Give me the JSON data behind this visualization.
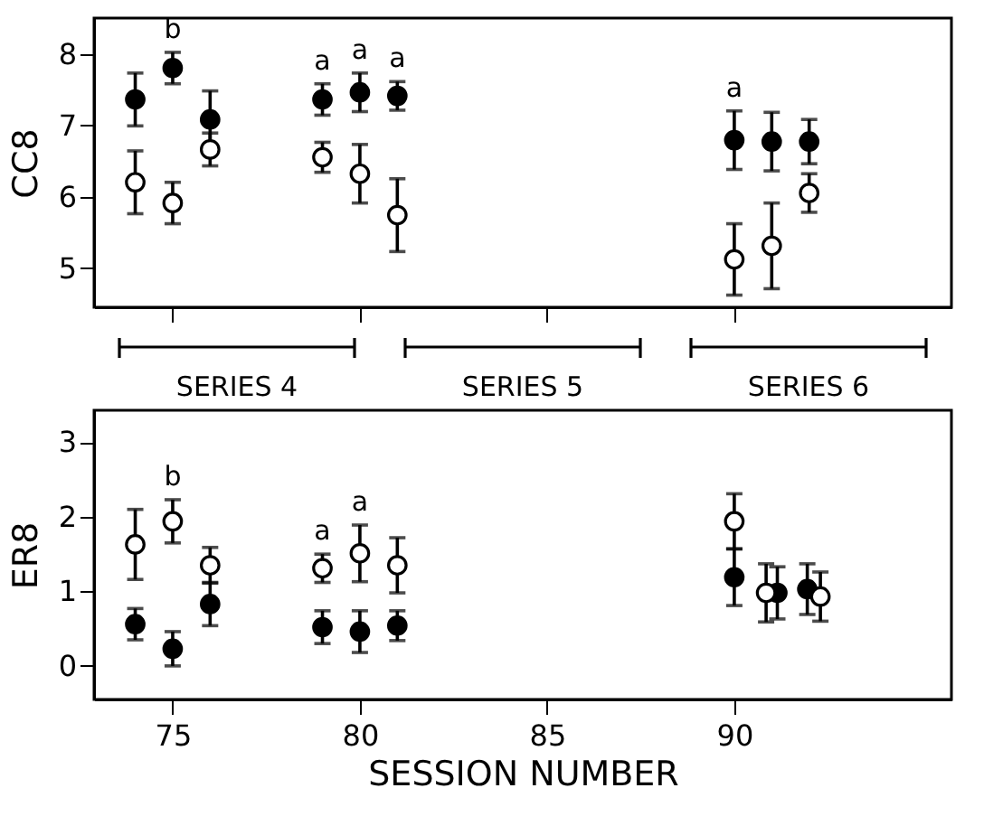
{
  "chart_data": [
    {
      "type": "scatter",
      "ylabel": "CC8",
      "xlim": [
        72.9,
        95.8
      ],
      "xticks": [
        75,
        80,
        85,
        90
      ],
      "ylim": [
        4.45,
        8.5
      ],
      "yticks": [
        5,
        6,
        7,
        8
      ],
      "tick_labels": "y",
      "marker": "circle",
      "grid": false,
      "series": [
        {
          "color": "#000000",
          "x": [
            74,
            75,
            76,
            79,
            80,
            81,
            90,
            91,
            92
          ],
          "values": [
            7.36,
            7.8,
            7.08,
            7.36,
            7.46,
            7.41,
            6.79,
            6.77,
            6.77
          ],
          "errors": [
            0.37,
            0.22,
            0.4,
            0.22,
            0.27,
            0.2,
            0.41,
            0.41,
            0.31
          ]
        },
        {
          "color": "#000000",
          "x": [
            74,
            75,
            76,
            79,
            80,
            81,
            90,
            91,
            92
          ],
          "values": [
            6.2,
            5.91,
            6.66,
            6.55,
            6.32,
            5.74,
            5.12,
            5.31,
            6.05
          ],
          "errors": [
            0.44,
            0.29,
            0.23,
            0.21,
            0.41,
            0.51,
            0.5,
            0.6,
            0.27
          ]
        }
      ],
      "annotations": [
        {
          "text": "b",
          "x": 75,
          "y": 8.02
        },
        {
          "text": "a",
          "x": 79,
          "y": 7.58
        },
        {
          "text": "a",
          "x": 80,
          "y": 7.73
        },
        {
          "text": "a",
          "x": 81,
          "y": 7.61
        },
        {
          "text": "a",
          "x": 90,
          "y": 7.2
        },
        "SERIES 4",
        "SERIES 5",
        "SERIES 6"
      ]
    },
    {
      "type": "scatter",
      "ylabel": "ER8",
      "xlabel": "SESSION NUMBER",
      "xlim": [
        72.9,
        95.8
      ],
      "xticks": [
        75,
        80,
        85,
        90
      ],
      "ylim": [
        -0.45,
        3.43
      ],
      "yticks": [
        0,
        1,
        2,
        3
      ],
      "marker": "circle",
      "grid": false,
      "series": [
        {
          "color": "#000000",
          "x": [
            74,
            75,
            76,
            79,
            80,
            81,
            90,
            91.15,
            91.95
          ],
          "values": [
            0.56,
            0.23,
            0.83,
            0.52,
            0.46,
            0.54,
            1.19,
            0.98,
            1.03
          ],
          "errors": [
            0.21,
            0.23,
            0.29,
            0.22,
            0.28,
            0.2,
            0.38,
            0.35,
            0.34
          ]
        },
        {
          "color": "#000000",
          "x": [
            74,
            75,
            76,
            79,
            80,
            81,
            90,
            90.85,
            92.3
          ],
          "values": [
            1.63,
            1.94,
            1.35,
            1.31,
            1.51,
            1.35,
            1.94,
            0.98,
            0.93
          ],
          "errors": [
            0.47,
            0.29,
            0.24,
            0.19,
            0.38,
            0.37,
            0.37,
            0.39,
            0.33
          ]
        }
      ],
      "annotations": [
        {
          "text": "b",
          "x": 75,
          "y": 2.23
        },
        {
          "text": "a",
          "x": 79,
          "y": 1.5
        },
        {
          "text": "a",
          "x": 80,
          "y": 1.89
        }
      ]
    }
  ]
}
